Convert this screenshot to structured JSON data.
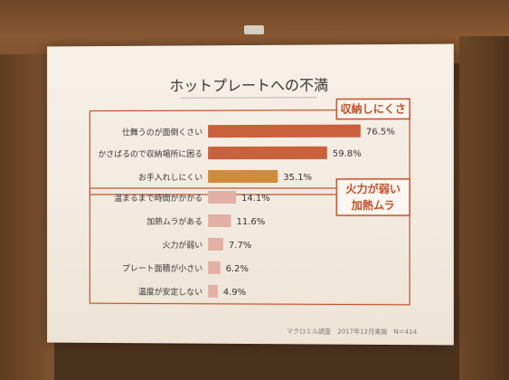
{
  "chart_data": {
    "type": "bar",
    "title": "ホットプレートへの不満",
    "categories": [
      "仕舞うのが面倒くさい",
      "かさばるので収納場所に困る",
      "お手入れしにくい",
      "温まるまで時間がかかる",
      "加熱ムラがある",
      "火力が弱い",
      "プレート面積が小さい",
      "温度が安定しない"
    ],
    "values": [
      76.5,
      59.8,
      35.1,
      14.1,
      11.6,
      7.7,
      6.2,
      4.9
    ],
    "value_labels": [
      "76.5%",
      "59.8%",
      "35.1%",
      "14.1%",
      "11.6%",
      "7.7%",
      "6.2%",
      "4.9%"
    ],
    "groups": [
      {
        "label_lines": [
          "収納しにくさ"
        ],
        "members": [
          0,
          1,
          2
        ]
      },
      {
        "label_lines": [
          "火力が弱い",
          "加熱ムラ"
        ],
        "members": [
          3,
          4,
          5,
          6,
          7
        ]
      }
    ],
    "ylim": [
      0,
      100
    ],
    "source": "マクロミル調査　2017年12月実施　N＝414",
    "colors": {
      "bar_main": "#c8613c",
      "bar_mid": "#d08a3c",
      "bar_light": "#e2b0a4",
      "accent": "#c0502c",
      "label_text": "#333333"
    }
  }
}
